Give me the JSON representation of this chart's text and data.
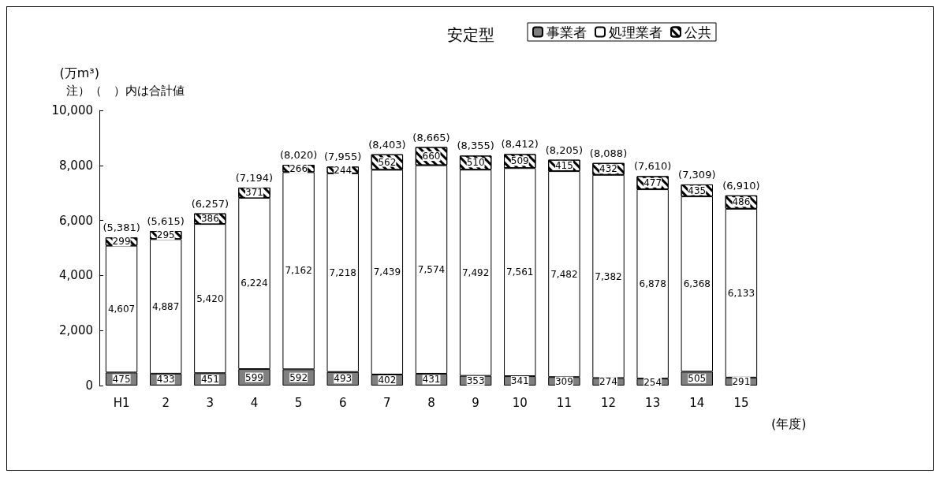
{
  "chart_data": {
    "type": "bar",
    "title": "安定型",
    "ylabel": "(万m³)",
    "xlabel": "(年度)",
    "annotations": [
      "注）（　）内は合計値"
    ],
    "categories": [
      "H1",
      "2",
      "3",
      "4",
      "5",
      "6",
      "7",
      "8",
      "9",
      "10",
      "11",
      "12",
      "13",
      "14",
      "15"
    ],
    "stacked": true,
    "legend": "top",
    "grid": false,
    "ylim": [
      0,
      10000
    ],
    "yticks": [
      {
        "value": 0,
        "label": "0"
      },
      {
        "value": 2000,
        "label": "2,000"
      },
      {
        "value": 4000,
        "label": "4,000"
      },
      {
        "value": 6000,
        "label": "6,000"
      },
      {
        "value": 8000,
        "label": "8,000"
      },
      {
        "value": 10000,
        "label": "10,000"
      }
    ],
    "series": [
      {
        "name": "事業者",
        "color": "#808080",
        "values": [
          475,
          433,
          451,
          599,
          592,
          493,
          402,
          431,
          353,
          341,
          309,
          274,
          254,
          505,
          291
        ],
        "value_labels": [
          "475",
          "433",
          "451",
          "599",
          "592",
          "493",
          "402",
          "431",
          "353",
          "341",
          "309",
          "274",
          "254",
          "505",
          "291"
        ]
      },
      {
        "name": "処理業者",
        "color": "#ffffff",
        "values": [
          4607,
          4887,
          5420,
          6224,
          7162,
          7218,
          7439,
          7574,
          7492,
          7561,
          7482,
          7382,
          6878,
          6368,
          6133
        ],
        "value_labels": [
          "4,607",
          "4,887",
          "5,420",
          "6,224",
          "7,162",
          "7,218",
          "7,439",
          "7,574",
          "7,492",
          "7,561",
          "7,482",
          "7,382",
          "6,878",
          "6,368",
          "6,133"
        ]
      },
      {
        "name": "公共",
        "color": "#000000",
        "values": [
          299,
          295,
          386,
          371,
          266,
          244,
          562,
          660,
          510,
          509,
          415,
          432,
          477,
          435,
          486
        ],
        "value_labels": [
          "299",
          "295",
          "386",
          "371",
          "266",
          "244",
          "562",
          "660",
          "510",
          "509",
          "415",
          "432",
          "477",
          "435",
          "486"
        ]
      }
    ],
    "totals": [
      "(5,381)",
      "(5,615)",
      "(6,257)",
      "(7,194)",
      "(8,020)",
      "(7,955)",
      "(8,403)",
      "(8,665)",
      "(8,355)",
      "(8,412)",
      "(8,205)",
      "(8,088)",
      "(7,610)",
      "(7,309)",
      "(6,910)"
    ]
  }
}
